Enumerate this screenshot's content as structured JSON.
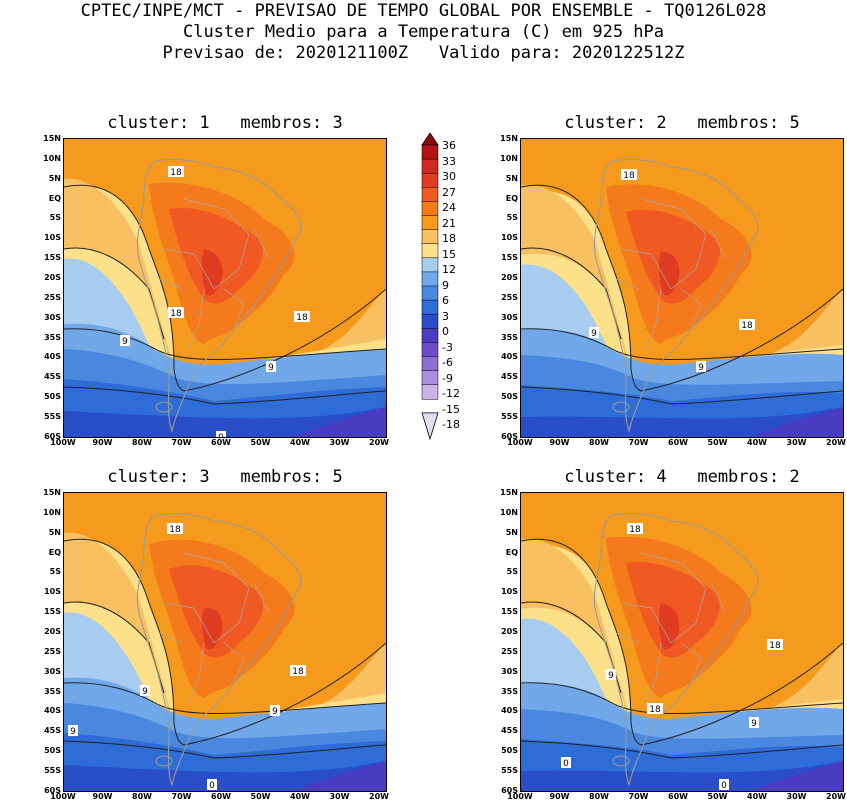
{
  "header": {
    "line1": "CPTEC/INPE/MCT - PREVISAO DE TEMPO GLOBAL POR ENSEMBLE - TQ0126L028",
    "line2": "Cluster Medio para a Temperatura (C) em 925 hPa",
    "line3": "Previsao de: 2020121100Z   Valido para: 2020122512Z"
  },
  "map": {
    "lat_labels": [
      "15N",
      "10N",
      "5N",
      "EQ",
      "5S",
      "10S",
      "15S",
      "20S",
      "25S",
      "30S",
      "35S",
      "40S",
      "45S",
      "50S",
      "55S",
      "60S"
    ],
    "lon_labels": [
      "100W",
      "90W",
      "80W",
      "70W",
      "60W",
      "50W",
      "40W",
      "30W",
      "20W"
    ]
  },
  "colorbar": {
    "levels": [
      "36",
      "33",
      "30",
      "27",
      "24",
      "21",
      "18",
      "15",
      "12",
      "9",
      "6",
      "3",
      "0",
      "-3",
      "-6",
      "-9",
      "-12",
      "-15",
      "-18"
    ],
    "colors": [
      "#8b0a0a",
      "#b01414",
      "#cc2a22",
      "#e03c22",
      "#f05a22",
      "#f57a1c",
      "#f59a1c",
      "#f8c060",
      "#fce08a",
      "#a8ccf0",
      "#70a8ea",
      "#4a88e0",
      "#2e6cd8",
      "#2a4ec8",
      "#4a3cc0",
      "#6a50c8",
      "#8a70d2",
      "#a890dc",
      "#c8b4e8",
      "#e6dcf2"
    ]
  },
  "panels": [
    {
      "title": "cluster: 1   membros: 3",
      "labels": [
        "18",
        "18",
        "18",
        "9",
        "9",
        "0"
      ]
    },
    {
      "title": "cluster: 2   membros: 5",
      "labels": [
        "18",
        "18",
        "9",
        "9"
      ]
    },
    {
      "title": "cluster: 3   membros: 5",
      "labels": [
        "18",
        "18",
        "9",
        "9",
        "9",
        "0"
      ]
    },
    {
      "title": "cluster: 4   membros: 2",
      "labels": [
        "18",
        "18",
        "18",
        "9",
        "9",
        "0",
        "0"
      ]
    }
  ]
}
